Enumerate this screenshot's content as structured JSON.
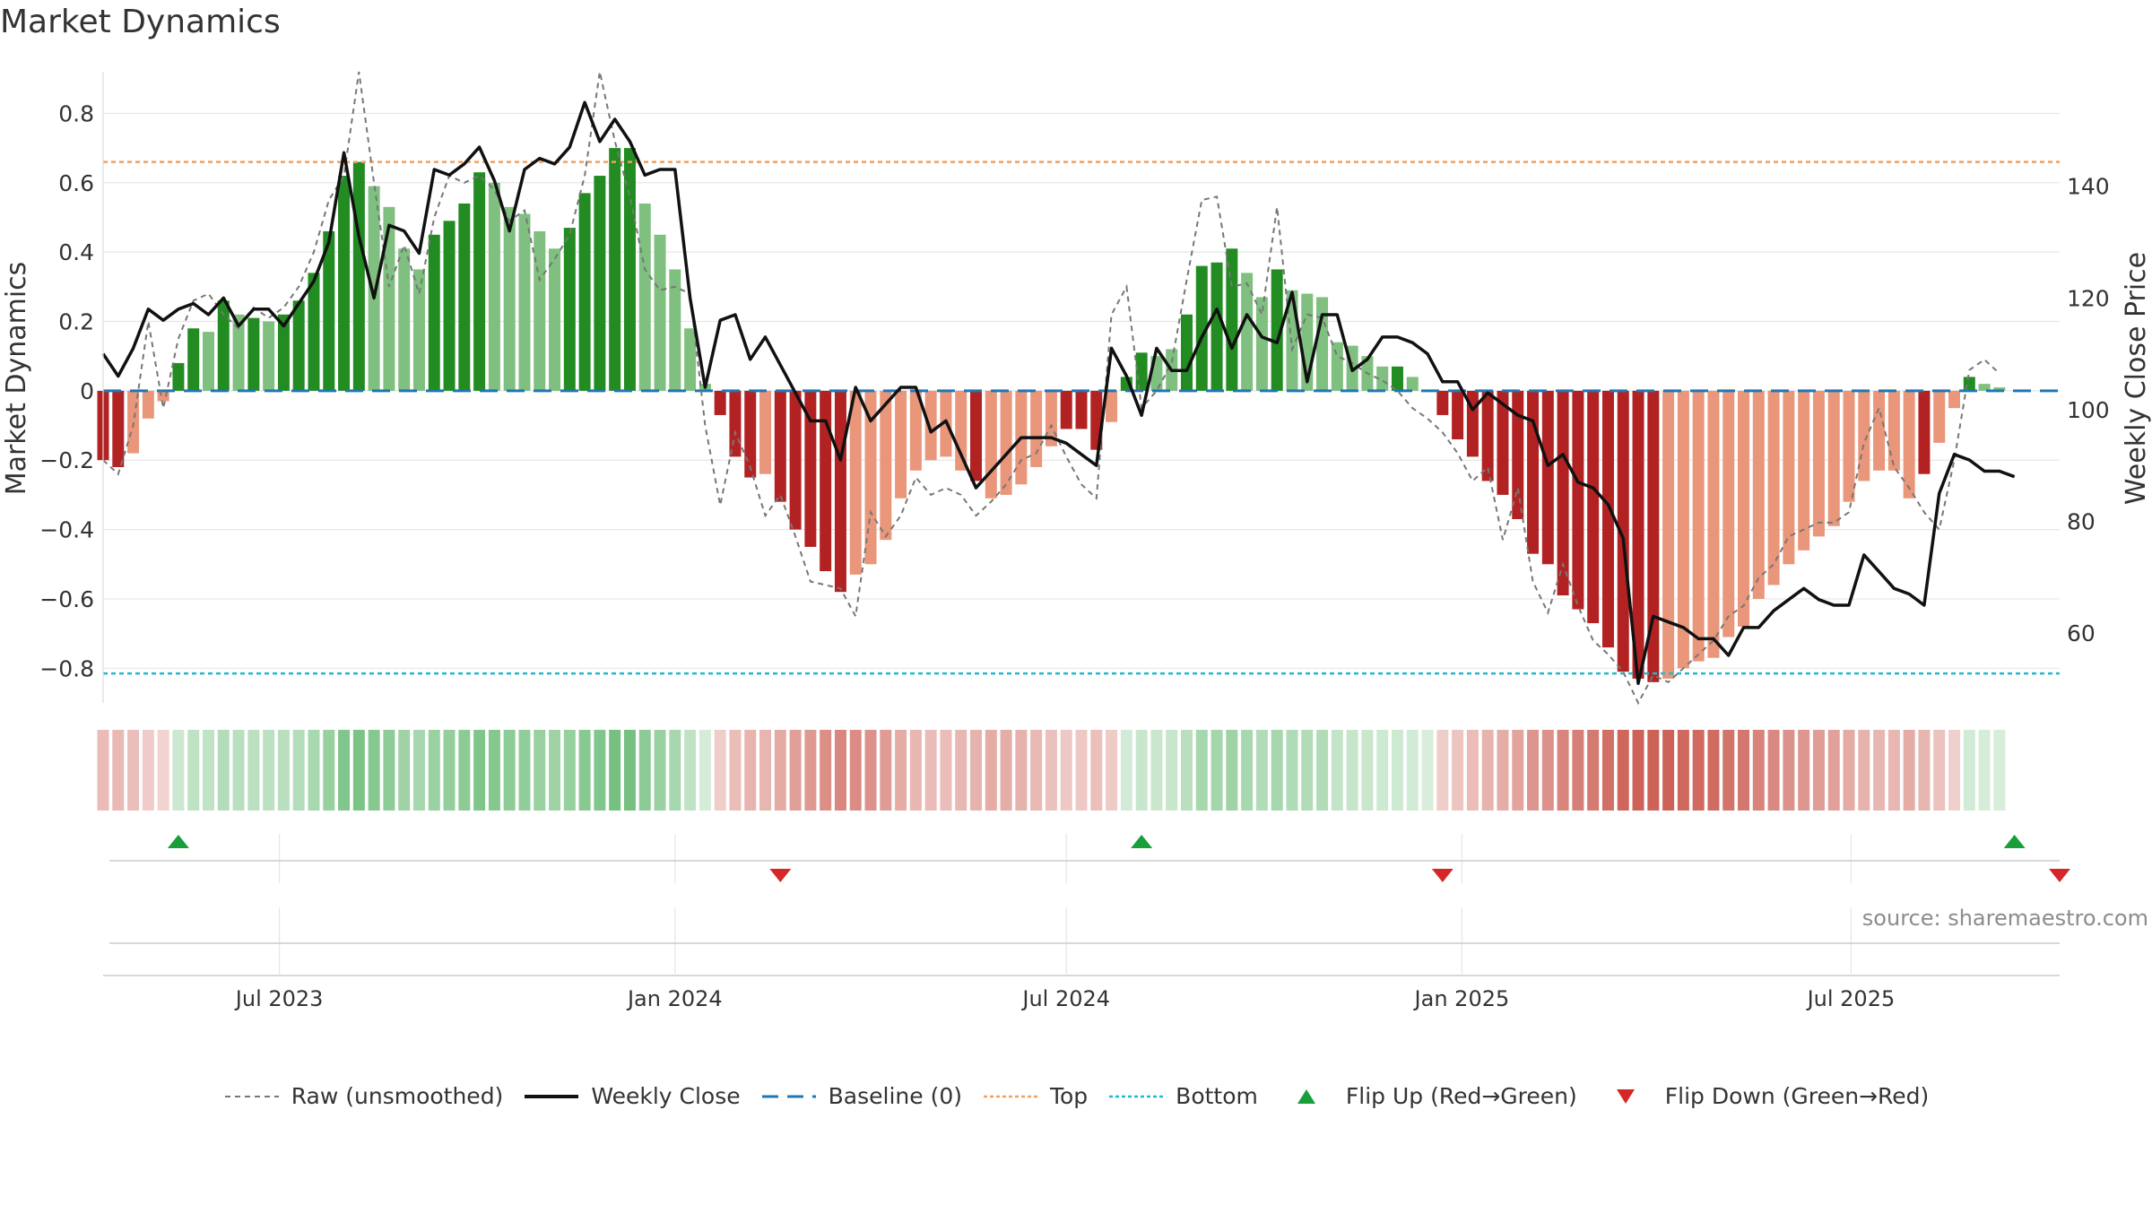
{
  "title": "Market Dynamics",
  "source": "source: sharemaestro.com",
  "chart_data": {
    "type": "bar",
    "title": "Market Dynamics",
    "ylabel": "Market Dynamics",
    "y2label": "Weekly Close Price",
    "ylim": [
      -0.9,
      0.92
    ],
    "y2lim": [
      47.5,
      160.5
    ],
    "yticks": [
      0.8,
      0.6,
      0.4,
      0.2,
      0,
      -0.2,
      -0.4,
      -0.6,
      -0.8
    ],
    "yticklabels": [
      "0.8",
      "0.6",
      "0.4",
      "0.2",
      "0",
      "−0.2",
      "−0.4",
      "−0.6",
      "−0.8"
    ],
    "y2ticks": [
      140,
      120,
      100,
      80,
      60
    ],
    "y2ticklabels": [
      "140",
      "120",
      "100",
      "80",
      "60"
    ],
    "x_start": "2023-04-10",
    "x_end": "2025-10-06",
    "x_step_days": 7,
    "xtick_dates": [
      "2023-07-01",
      "2024-01-01",
      "2024-07-01",
      "2025-01-01",
      "2025-07-01"
    ],
    "xtick_labels": [
      "Jul 2023",
      "Jan 2024",
      "Jul 2024",
      "Jan 2025",
      "Jul 2025"
    ],
    "grid": true,
    "legend_position": "bottom-center",
    "top_level": 0.66,
    "bottom_level": -0.815,
    "baseline": 0,
    "colors": {
      "up_dark": "#228b22",
      "up_light": "#7fbf7f",
      "down_dark": "#b22222",
      "down_light": "#e9967a",
      "raw": "#777777",
      "close": "#111111",
      "baseline": "#1f77b4",
      "top": "#f0a060",
      "bottom": "#22b8cf",
      "flip_up": "#1a9e3a",
      "flip_down": "#d62728",
      "grid": "#e6e6e6"
    },
    "bars": [
      -0.2,
      -0.22,
      -0.18,
      -0.08,
      -0.03,
      0.08,
      0.18,
      0.17,
      0.26,
      0.22,
      0.21,
      0.2,
      0.22,
      0.26,
      0.34,
      0.46,
      0.62,
      0.66,
      0.59,
      0.53,
      0.41,
      0.35,
      0.45,
      0.49,
      0.54,
      0.63,
      0.6,
      0.53,
      0.51,
      0.46,
      0.41,
      0.47,
      0.57,
      0.62,
      0.7,
      0.7,
      0.54,
      0.45,
      0.35,
      0.18,
      0.02,
      -0.07,
      -0.19,
      -0.25,
      -0.24,
      -0.32,
      -0.4,
      -0.45,
      -0.52,
      -0.58,
      -0.53,
      -0.5,
      -0.43,
      -0.31,
      -0.23,
      -0.2,
      -0.19,
      -0.23,
      -0.26,
      -0.31,
      -0.3,
      -0.27,
      -0.22,
      -0.16,
      -0.11,
      -0.11,
      -0.17,
      -0.09,
      0.04,
      0.11,
      0.1,
      0.12,
      0.22,
      0.36,
      0.37,
      0.41,
      0.34,
      0.27,
      0.35,
      0.29,
      0.28,
      0.27,
      0.14,
      0.13,
      0.1,
      0.07,
      0.07,
      0.04,
      0.0,
      -0.07,
      -0.14,
      -0.19,
      -0.26,
      -0.3,
      -0.37,
      -0.47,
      -0.5,
      -0.59,
      -0.63,
      -0.67,
      -0.74,
      -0.81,
      -0.83,
      -0.84,
      -0.83,
      -0.8,
      -0.78,
      -0.77,
      -0.71,
      -0.68,
      -0.6,
      -0.56,
      -0.5,
      -0.46,
      -0.42,
      -0.39,
      -0.32,
      -0.26,
      -0.23,
      -0.23,
      -0.31,
      -0.24,
      -0.15,
      -0.05,
      0.04,
      0.02,
      0.01
    ],
    "bar_shade": [
      "dark",
      "dark",
      "light",
      "light",
      "light",
      "dark",
      "dark",
      "light",
      "dark",
      "light",
      "dark",
      "light",
      "dark",
      "dark",
      "dark",
      "dark",
      "dark",
      "dark",
      "light",
      "light",
      "light",
      "light",
      "dark",
      "dark",
      "dark",
      "dark",
      "light",
      "light",
      "light",
      "light",
      "light",
      "dark",
      "dark",
      "dark",
      "dark",
      "dark",
      "light",
      "light",
      "light",
      "light",
      "light",
      "dark",
      "dark",
      "dark",
      "light",
      "dark",
      "dark",
      "dark",
      "dark",
      "dark",
      "light",
      "light",
      "light",
      "light",
      "light",
      "light",
      "light",
      "light",
      "dark",
      "light",
      "light",
      "light",
      "light",
      "light",
      "dark",
      "dark",
      "dark",
      "light",
      "dark",
      "dark",
      "light",
      "light",
      "dark",
      "dark",
      "dark",
      "dark",
      "light",
      "light",
      "dark",
      "light",
      "light",
      "light",
      "light",
      "light",
      "light",
      "light",
      "dark",
      "light",
      "light",
      "dark",
      "dark",
      "dark",
      "dark",
      "dark",
      "dark",
      "dark",
      "dark",
      "dark",
      "dark",
      "dark",
      "dark",
      "dark",
      "dark",
      "dark",
      "light",
      "light",
      "light",
      "light",
      "light",
      "light",
      "light",
      "light",
      "light",
      "light",
      "light",
      "light",
      "light",
      "light",
      "light",
      "light",
      "light",
      "dark",
      "light",
      "light",
      "dark",
      "light",
      "light",
      "dark",
      "light",
      "light"
    ],
    "raw": [
      -0.2,
      -0.24,
      -0.1,
      0.2,
      -0.05,
      0.15,
      0.26,
      0.28,
      0.22,
      0.18,
      0.24,
      0.21,
      0.24,
      0.3,
      0.4,
      0.55,
      0.62,
      0.92,
      0.6,
      0.3,
      0.42,
      0.28,
      0.5,
      0.62,
      0.6,
      0.62,
      0.58,
      0.49,
      0.52,
      0.32,
      0.38,
      0.45,
      0.62,
      0.92,
      0.72,
      0.56,
      0.35,
      0.29,
      0.3,
      0.28,
      -0.1,
      -0.33,
      -0.12,
      -0.22,
      -0.36,
      -0.3,
      -0.42,
      -0.55,
      -0.56,
      -0.57,
      -0.65,
      -0.35,
      -0.42,
      -0.36,
      -0.25,
      -0.3,
      -0.28,
      -0.3,
      -0.36,
      -0.32,
      -0.27,
      -0.2,
      -0.18,
      -0.1,
      -0.19,
      -0.27,
      -0.31,
      0.22,
      0.3,
      -0.05,
      0.0,
      0.08,
      0.32,
      0.55,
      0.56,
      0.3,
      0.31,
      0.22,
      0.53,
      0.12,
      0.22,
      0.21,
      0.1,
      0.08,
      0.05,
      0.03,
      0.0,
      -0.05,
      -0.08,
      -0.12,
      -0.18,
      -0.26,
      -0.22,
      -0.43,
      -0.28,
      -0.55,
      -0.64,
      -0.5,
      -0.62,
      -0.72,
      -0.76,
      -0.81,
      -0.9,
      -0.82,
      -0.84,
      -0.8,
      -0.76,
      -0.72,
      -0.65,
      -0.62,
      -0.54,
      -0.5,
      -0.42,
      -0.4,
      -0.38,
      -0.38,
      -0.35,
      -0.15,
      -0.05,
      -0.22,
      -0.28,
      -0.35,
      -0.4,
      -0.2,
      0.06,
      0.09,
      0.05
    ],
    "close": [
      110,
      106,
      111,
      118,
      116,
      118,
      119,
      117,
      120,
      115,
      118,
      118,
      115,
      119,
      123,
      130,
      146,
      131,
      120,
      133,
      132,
      128,
      143,
      142,
      144,
      147,
      141,
      132,
      143,
      145,
      144,
      147,
      155,
      148,
      152,
      148,
      142,
      143,
      143,
      120,
      104,
      116,
      117,
      109,
      113,
      108,
      103,
      98,
      98,
      91,
      104,
      98,
      101,
      104,
      104,
      96,
      98,
      92,
      86,
      89,
      92,
      95,
      95,
      95,
      94,
      92,
      90,
      111,
      106,
      99,
      111,
      107,
      107,
      113,
      118,
      111,
      117,
      113,
      112,
      121,
      105,
      117,
      117,
      107,
      109,
      113,
      113,
      112,
      110,
      105,
      105,
      100,
      103,
      101,
      99,
      98,
      90,
      92,
      87,
      86,
      83,
      77,
      51,
      63,
      62,
      61,
      59,
      59,
      56,
      61,
      61,
      64,
      66,
      68,
      66,
      65,
      65,
      74,
      71,
      68,
      67,
      65,
      85,
      92,
      91,
      89,
      89,
      88
    ],
    "flip_up": [
      "2023-05-15",
      "2024-08-05",
      "2025-09-15"
    ],
    "flip_down": [
      "2024-02-19",
      "2024-12-23",
      "2025-10-06"
    ],
    "legend": [
      "Raw (unsmoothed)",
      "Weekly Close",
      "Baseline (0)",
      "Top",
      "Bottom",
      "Flip Up (Red→Green)",
      "Flip Down (Green→Red)"
    ]
  }
}
